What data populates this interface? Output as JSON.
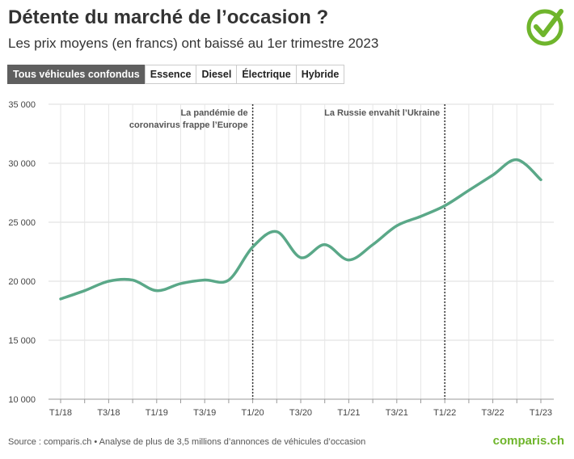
{
  "chart_data": {
    "type": "line",
    "title": "Détente du marché de l’occasion ?",
    "subtitle": "Les prix moyens (en francs) ont baissé au 1er trimestre 2023",
    "categories": [
      "T1/18",
      null,
      "T3/18",
      null,
      "T1/19",
      null,
      "T3/19",
      null,
      "T1/20",
      null,
      "T3/20",
      null,
      "T1/21",
      null,
      "T3/21",
      null,
      "T1/22",
      null,
      "T3/22",
      null,
      "T1/23"
    ],
    "values": [
      18500,
      19200,
      20000,
      20100,
      19200,
      19800,
      20100,
      20100,
      22900,
      24200,
      22000,
      23100,
      21800,
      23100,
      24700,
      25500,
      26400,
      27700,
      29000,
      30300,
      28600
    ],
    "color": "#5aa888",
    "ylim": [
      10000,
      35000
    ],
    "yticks": [
      {
        "value": 10000,
        "label": "10 000"
      },
      {
        "value": 15000,
        "label": "15 000"
      },
      {
        "value": 20000,
        "label": "20 000"
      },
      {
        "value": 25000,
        "label": "25 000"
      },
      {
        "value": 30000,
        "label": "30 000"
      },
      {
        "value": 35000,
        "label": "35 000"
      }
    ],
    "grid": true,
    "annotations": [
      {
        "x": "T1/20",
        "lines": [
          "La pandémie de",
          "coronavirus frappe l’Europe"
        ]
      },
      {
        "x": "T1/22",
        "lines": [
          "La Russie envahit l’Ukraine"
        ]
      }
    ]
  },
  "tabs": {
    "items": [
      "Tous véhicules confondus",
      "Essence",
      "Diesel",
      "Électrique",
      "Hybride"
    ],
    "active": "Tous véhicules confondus"
  },
  "source": "Source : comparis.ch • Analyse de plus de 3,5 millions d’annonces de véhicules d’occasion",
  "logo": "comparis.ch"
}
